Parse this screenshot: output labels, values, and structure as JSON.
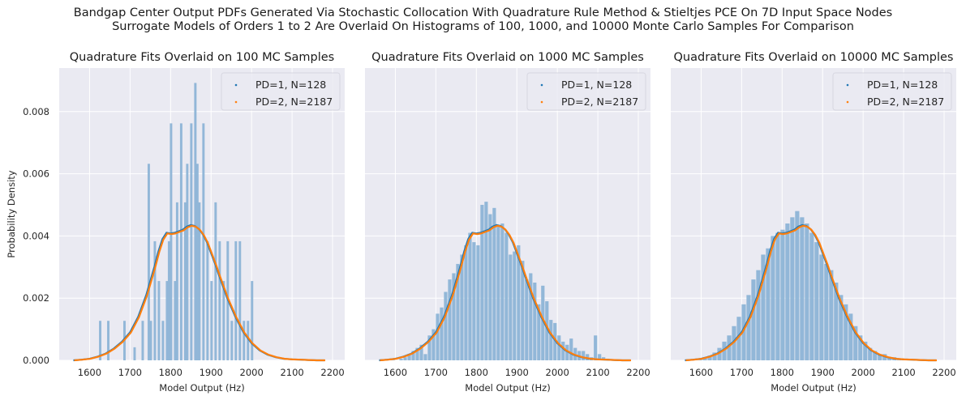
{
  "suptitle": {
    "line1": "Bandgap Center Output PDFs Generated Via Stochastic Collocation With Quadrature Rule Method & Stieltjes PCE On 7D Input Space Nodes",
    "line2": "Surrogate Models of Orders 1 to 2 Are Overlaid On Histograms of 100, 1000, and 10000 Monte Carlo Samples For Comparison"
  },
  "colors": {
    "background": "#eaeaf2",
    "grid": "#ffffff",
    "histogram": "#8db4d6",
    "series1": "#1f77b4",
    "series2": "#ff7f0e"
  },
  "chart_data": [
    {
      "type": "bar",
      "title": "Quadrature Fits Overlaid on 100 MC Samples",
      "xlabel": "Model Output (Hz)",
      "ylabel": "Probability Density",
      "xlim": [
        1525,
        2230
      ],
      "ylim": [
        0,
        0.0094
      ],
      "xticks": [
        1600,
        1700,
        1800,
        1900,
        2000,
        2100,
        2200
      ],
      "yticks": [
        "0.000",
        "0.002",
        "0.004",
        "0.006",
        "0.008"
      ],
      "legend": "top-right",
      "grid": true,
      "histogram": {
        "bin_width": 7.5,
        "bins": [
          {
            "x": 1627,
            "y": 0.00127
          },
          {
            "x": 1647,
            "y": 0.00127
          },
          {
            "x": 1687,
            "y": 0.00127
          },
          {
            "x": 1712,
            "y": 0.00042
          },
          {
            "x": 1732,
            "y": 0.00127
          },
          {
            "x": 1747,
            "y": 0.00632
          },
          {
            "x": 1752,
            "y": 0.00127
          },
          {
            "x": 1762,
            "y": 0.00383
          },
          {
            "x": 1772,
            "y": 0.00255
          },
          {
            "x": 1782,
            "y": 0.00127
          },
          {
            "x": 1792,
            "y": 0.00255
          },
          {
            "x": 1797,
            "y": 0.00383
          },
          {
            "x": 1802,
            "y": 0.00762
          },
          {
            "x": 1812,
            "y": 0.00255
          },
          {
            "x": 1817,
            "y": 0.00508
          },
          {
            "x": 1827,
            "y": 0.00762
          },
          {
            "x": 1837,
            "y": 0.00508
          },
          {
            "x": 1842,
            "y": 0.00632
          },
          {
            "x": 1852,
            "y": 0.00762
          },
          {
            "x": 1862,
            "y": 0.00892
          },
          {
            "x": 1867,
            "y": 0.00632
          },
          {
            "x": 1872,
            "y": 0.00508
          },
          {
            "x": 1882,
            "y": 0.00762
          },
          {
            "x": 1892,
            "y": 0.00383
          },
          {
            "x": 1902,
            "y": 0.00255
          },
          {
            "x": 1912,
            "y": 0.00508
          },
          {
            "x": 1922,
            "y": 0.00383
          },
          {
            "x": 1932,
            "y": 0.00255
          },
          {
            "x": 1942,
            "y": 0.00383
          },
          {
            "x": 1952,
            "y": 0.00127
          },
          {
            "x": 1962,
            "y": 0.00383
          },
          {
            "x": 1972,
            "y": 0.00383
          },
          {
            "x": 1982,
            "y": 0.00127
          },
          {
            "x": 1992,
            "y": 0.00127
          },
          {
            "x": 2002,
            "y": 0.00255
          }
        ]
      },
      "series": [
        {
          "name": "PD=1, N=128",
          "color": "#1f77b4"
        },
        {
          "name": "PD=2, N=2187",
          "color": "#ff7f0e"
        }
      ]
    },
    {
      "type": "bar",
      "title": "Quadrature Fits Overlaid on 1000 MC Samples",
      "xlabel": "Model Output (Hz)",
      "ylabel": "",
      "xlim": [
        1525,
        2230
      ],
      "ylim": [
        0,
        0.0094
      ],
      "xticks": [
        1600,
        1700,
        1800,
        1900,
        2000,
        2100,
        2200
      ],
      "legend": "top-right",
      "grid": true,
      "histogram": {
        "bin_width": 10,
        "bins": [
          {
            "x": 1595,
            "y": 5e-05
          },
          {
            "x": 1605,
            "y": 0.0
          },
          {
            "x": 1615,
            "y": 5e-05
          },
          {
            "x": 1625,
            "y": 0.0001
          },
          {
            "x": 1635,
            "y": 0.0002
          },
          {
            "x": 1645,
            "y": 0.0003
          },
          {
            "x": 1655,
            "y": 0.0004
          },
          {
            "x": 1665,
            "y": 0.0005
          },
          {
            "x": 1675,
            "y": 0.0002
          },
          {
            "x": 1685,
            "y": 0.0008
          },
          {
            "x": 1695,
            "y": 0.001
          },
          {
            "x": 1705,
            "y": 0.0015
          },
          {
            "x": 1715,
            "y": 0.0017
          },
          {
            "x": 1725,
            "y": 0.0022
          },
          {
            "x": 1735,
            "y": 0.0026
          },
          {
            "x": 1745,
            "y": 0.0028
          },
          {
            "x": 1755,
            "y": 0.0031
          },
          {
            "x": 1765,
            "y": 0.0034
          },
          {
            "x": 1775,
            "y": 0.0037
          },
          {
            "x": 1785,
            "y": 0.0041
          },
          {
            "x": 1795,
            "y": 0.0038
          },
          {
            "x": 1805,
            "y": 0.0037
          },
          {
            "x": 1815,
            "y": 0.005
          },
          {
            "x": 1825,
            "y": 0.0051
          },
          {
            "x": 1835,
            "y": 0.0047
          },
          {
            "x": 1845,
            "y": 0.0049
          },
          {
            "x": 1855,
            "y": 0.0043
          },
          {
            "x": 1865,
            "y": 0.0044
          },
          {
            "x": 1875,
            "y": 0.0041
          },
          {
            "x": 1885,
            "y": 0.0034
          },
          {
            "x": 1895,
            "y": 0.0035
          },
          {
            "x": 1905,
            "y": 0.0037
          },
          {
            "x": 1915,
            "y": 0.0032
          },
          {
            "x": 1925,
            "y": 0.0026
          },
          {
            "x": 1935,
            "y": 0.0028
          },
          {
            "x": 1945,
            "y": 0.0025
          },
          {
            "x": 1955,
            "y": 0.0018
          },
          {
            "x": 1965,
            "y": 0.0024
          },
          {
            "x": 1975,
            "y": 0.0019
          },
          {
            "x": 1985,
            "y": 0.0013
          },
          {
            "x": 1995,
            "y": 0.0012
          },
          {
            "x": 2005,
            "y": 0.0008
          },
          {
            "x": 2015,
            "y": 0.0006
          },
          {
            "x": 2025,
            "y": 0.0005
          },
          {
            "x": 2035,
            "y": 0.0007
          },
          {
            "x": 2045,
            "y": 0.0004
          },
          {
            "x": 2055,
            "y": 0.0003
          },
          {
            "x": 2065,
            "y": 0.0003
          },
          {
            "x": 2075,
            "y": 0.0002
          },
          {
            "x": 2085,
            "y": 0.0001
          },
          {
            "x": 2095,
            "y": 0.0008
          },
          {
            "x": 2105,
            "y": 0.0002
          },
          {
            "x": 2115,
            "y": 0.0001
          },
          {
            "x": 2125,
            "y": 5e-05
          }
        ]
      },
      "series": [
        {
          "name": "PD=1, N=128",
          "color": "#1f77b4"
        },
        {
          "name": "PD=2, N=2187",
          "color": "#ff7f0e"
        }
      ]
    },
    {
      "type": "bar",
      "title": "Quadrature Fits Overlaid on 10000 MC Samples",
      "xlabel": "Model Output (Hz)",
      "ylabel": "",
      "xlim": [
        1525,
        2230
      ],
      "ylim": [
        0,
        0.0094
      ],
      "xticks": [
        1600,
        1700,
        1800,
        1900,
        2000,
        2100,
        2200
      ],
      "legend": "top-right",
      "grid": true,
      "histogram": {
        "bin_width": 12,
        "bins": [
          {
            "x": 1586,
            "y": 2e-05
          },
          {
            "x": 1598,
            "y": 5e-05
          },
          {
            "x": 1610,
            "y": 0.0001
          },
          {
            "x": 1622,
            "y": 0.00015
          },
          {
            "x": 1634,
            "y": 0.00025
          },
          {
            "x": 1646,
            "y": 0.0004
          },
          {
            "x": 1658,
            "y": 0.0006
          },
          {
            "x": 1670,
            "y": 0.0008
          },
          {
            "x": 1682,
            "y": 0.0011
          },
          {
            "x": 1694,
            "y": 0.0014
          },
          {
            "x": 1706,
            "y": 0.0018
          },
          {
            "x": 1718,
            "y": 0.0021
          },
          {
            "x": 1730,
            "y": 0.0026
          },
          {
            "x": 1742,
            "y": 0.0029
          },
          {
            "x": 1754,
            "y": 0.0034
          },
          {
            "x": 1766,
            "y": 0.0036
          },
          {
            "x": 1778,
            "y": 0.004
          },
          {
            "x": 1790,
            "y": 0.0041
          },
          {
            "x": 1802,
            "y": 0.0042
          },
          {
            "x": 1814,
            "y": 0.0044
          },
          {
            "x": 1826,
            "y": 0.0046
          },
          {
            "x": 1838,
            "y": 0.0048
          },
          {
            "x": 1850,
            "y": 0.0046
          },
          {
            "x": 1862,
            "y": 0.0044
          },
          {
            "x": 1874,
            "y": 0.0041
          },
          {
            "x": 1886,
            "y": 0.0038
          },
          {
            "x": 1898,
            "y": 0.0034
          },
          {
            "x": 1910,
            "y": 0.0031
          },
          {
            "x": 1922,
            "y": 0.0029
          },
          {
            "x": 1934,
            "y": 0.0025
          },
          {
            "x": 1946,
            "y": 0.0021
          },
          {
            "x": 1958,
            "y": 0.0018
          },
          {
            "x": 1970,
            "y": 0.0015
          },
          {
            "x": 1982,
            "y": 0.0011
          },
          {
            "x": 1994,
            "y": 0.0008
          },
          {
            "x": 2006,
            "y": 0.0006
          },
          {
            "x": 2018,
            "y": 0.0004
          },
          {
            "x": 2030,
            "y": 0.0003
          },
          {
            "x": 2042,
            "y": 0.0002
          },
          {
            "x": 2054,
            "y": 0.0002
          },
          {
            "x": 2066,
            "y": 0.0001
          },
          {
            "x": 2078,
            "y": 0.0001
          },
          {
            "x": 2090,
            "y": 5e-05
          },
          {
            "x": 2102,
            "y": 3e-05
          },
          {
            "x": 2114,
            "y": 2e-05
          },
          {
            "x": 2126,
            "y": 1e-05
          }
        ]
      },
      "series": [
        {
          "name": "PD=1, N=128",
          "color": "#1f77b4"
        },
        {
          "name": "PD=2, N=2187",
          "color": "#ff7f0e"
        }
      ]
    }
  ],
  "pdf_curve": {
    "x": [
      1560,
      1580,
      1600,
      1620,
      1640,
      1660,
      1680,
      1700,
      1720,
      1740,
      1760,
      1770,
      1780,
      1790,
      1800,
      1810,
      1820,
      1830,
      1840,
      1850,
      1860,
      1870,
      1880,
      1890,
      1900,
      1910,
      1920,
      1940,
      1960,
      1980,
      2000,
      2020,
      2040,
      2060,
      2080,
      2100,
      2120,
      2140,
      2160,
      2180
    ],
    "y": [
      0.0,
      2e-05,
      5e-05,
      0.00012,
      0.00022,
      0.00038,
      0.0006,
      0.0009,
      0.0014,
      0.0021,
      0.003,
      0.0035,
      0.0039,
      0.0041,
      0.00408,
      0.0041,
      0.00415,
      0.0042,
      0.0043,
      0.00435,
      0.00432,
      0.00422,
      0.00405,
      0.0038,
      0.00345,
      0.0031,
      0.00272,
      0.002,
      0.0014,
      0.0009,
      0.00055,
      0.00032,
      0.00018,
      0.0001,
      5e-05,
      3e-05,
      2e-05,
      1e-05,
      0.0,
      0.0
    ]
  }
}
